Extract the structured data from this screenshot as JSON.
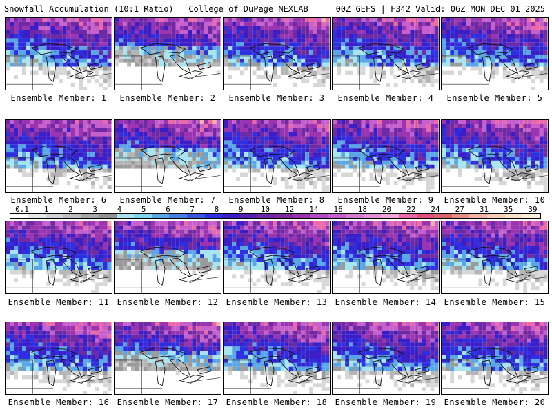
{
  "header": {
    "left": "Snowfall Accumulation (10:1 Ratio) | College of DuPage NEXLAB",
    "right": "00Z GEFS | F342 Valid: 06Z MON DEC 01 2025"
  },
  "colorbar": {
    "labels": [
      "0.1",
      "1",
      "2",
      "3",
      "4",
      "5",
      "6",
      "7",
      "8",
      "9",
      "10",
      "12",
      "14",
      "16",
      "18",
      "20",
      "22",
      "24",
      "27",
      "31",
      "35",
      "39"
    ],
    "colors": [
      "#ffffff",
      "#e6e6e6",
      "#d2d2d2",
      "#bdbdbd",
      "#a8a8a8",
      "#939393",
      "#a8e4f0",
      "#7fd3ea",
      "#59a6e6",
      "#4a7fe3",
      "#3b58dd",
      "#2d2fe0",
      "#3a1ec7",
      "#5721b5",
      "#6e2aa4",
      "#7f2a9e",
      "#9b34b0",
      "#b04dc6",
      "#c560cd",
      "#d57cd2",
      "#e58fd7",
      "#f0a7dc",
      "#e96aa6",
      "#e05083",
      "#d7676b",
      "#e48d86",
      "#f0b3a5",
      "#f6cdb9",
      "#fbe3c8",
      "#fff0dc"
    ]
  },
  "members": [
    {
      "label": "Ensemble Member: 1"
    },
    {
      "label": "Ensemble Member: 2"
    },
    {
      "label": "Ensemble Member: 3"
    },
    {
      "label": "Ensemble Member: 4"
    },
    {
      "label": "Ensemble Member: 5"
    },
    {
      "label": "Ensemble Member: 6"
    },
    {
      "label": "Ensemble Member: 7"
    },
    {
      "label": "Ensemble Member: 8"
    },
    {
      "label": "Ensemble Member: 9"
    },
    {
      "label": "Ensemble Member: 10"
    },
    {
      "label": "Ensemble Member: 11"
    },
    {
      "label": "Ensemble Member: 12"
    },
    {
      "label": "Ensemble Member: 13"
    },
    {
      "label": "Ensemble Member: 14"
    },
    {
      "label": "Ensemble Member: 15"
    },
    {
      "label": "Ensemble Member: 16"
    },
    {
      "label": "Ensemble Member: 17"
    },
    {
      "label": "Ensemble Member: 18"
    },
    {
      "label": "Ensemble Member: 19"
    },
    {
      "label": "Ensemble Member: 20"
    }
  ]
}
